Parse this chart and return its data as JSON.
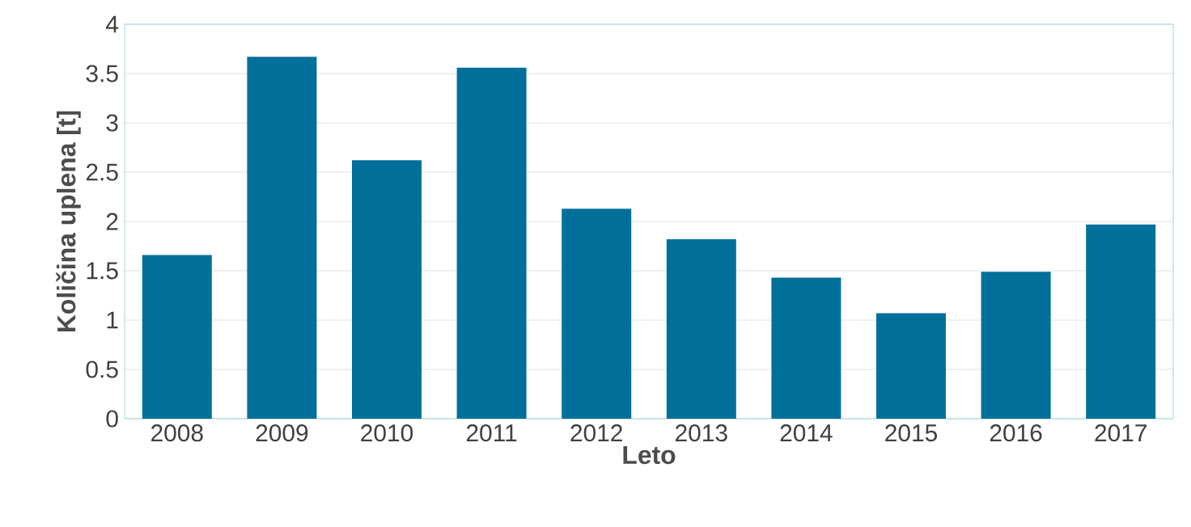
{
  "chart_data": {
    "type": "bar",
    "xlabel": "Leto",
    "ylabel": "Količina uplena [t]",
    "categories": [
      "2008",
      "2009",
      "2010",
      "2011",
      "2012",
      "2013",
      "2014",
      "2015",
      "2016",
      "2017"
    ],
    "values": [
      1.66,
      3.67,
      2.62,
      3.56,
      2.13,
      1.82,
      1.43,
      1.07,
      1.49,
      1.97
    ],
    "color": "#00709a",
    "ylim": [
      0,
      4
    ],
    "yticks": [
      0,
      0.5,
      1,
      1.5,
      2,
      2.5,
      3,
      3.5,
      4
    ],
    "grid": "y"
  }
}
